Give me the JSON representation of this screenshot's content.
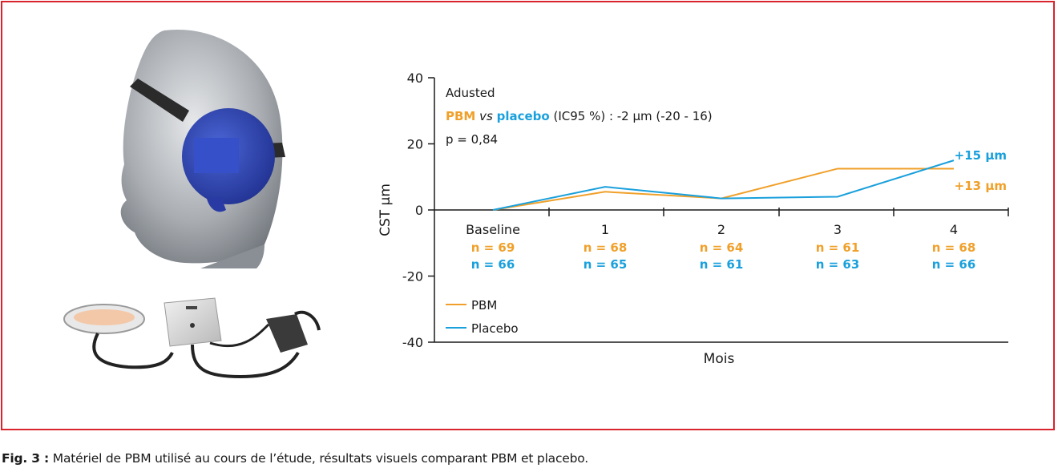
{
  "figure": {
    "caption_label": "Fig. 3 :",
    "caption_text": " Matériel de PBM utilisé au cours de l’étude, résultats visuels comparant PBM et placebo."
  },
  "colors": {
    "frame": "#d9232d",
    "pbm": "#f0a02a",
    "placebo": "#1aa0dc",
    "axis": "#1a1a1a"
  },
  "images": {
    "head_mask": "mannequin head wearing PBM eye mask",
    "device": "PBM light module with control box and power adapter"
  },
  "chart_data": {
    "type": "line",
    "ylabel": "CST µm",
    "xlabel": "Mois",
    "ylim": [
      -40,
      40
    ],
    "yticks": [
      "40",
      "20",
      "0",
      "-20",
      "-40"
    ],
    "categories": [
      "Baseline",
      "1",
      "2",
      "3",
      "4"
    ],
    "series": [
      {
        "name": "PBM",
        "color": "#f0a02a",
        "values": [
          0,
          5.5,
          3.5,
          12.5,
          12.5
        ],
        "n": [
          "n = 69",
          "n = 68",
          "n = 64",
          "n = 61",
          "n = 68"
        ],
        "end_label": "+13 µm"
      },
      {
        "name": "Placebo",
        "color": "#1aa0dc",
        "values": [
          0,
          7,
          3.5,
          4,
          15
        ],
        "n": [
          "n = 66",
          "n = 65",
          "n = 61",
          "n = 63",
          "n = 66"
        ],
        "end_label": "+15 µm"
      }
    ],
    "annotation": {
      "line1": "Adusted",
      "pbm": "PBM",
      "vs": " vs ",
      "placebo": "placebo",
      "rest": " (IC95 %) : -2 µm (-20 - 16)",
      "pvalue": "p = 0,84"
    },
    "legend_position": "bottom-left",
    "grid": false
  }
}
